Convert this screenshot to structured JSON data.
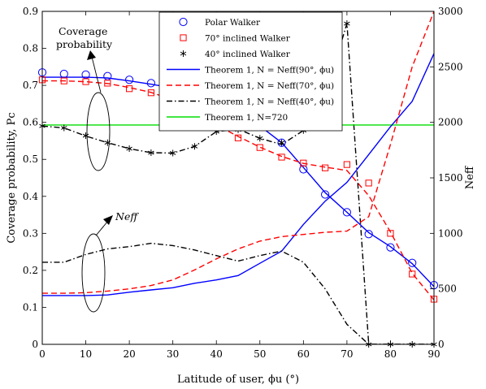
{
  "chart_data": {
    "type": "line",
    "x_label": "Latitude of user, ϕu (°)",
    "y_left_label": "Coverage probability, Pc",
    "y_right_label": "Neff",
    "x_ticks": [
      0,
      10,
      20,
      30,
      40,
      50,
      60,
      70,
      80,
      90
    ],
    "y_left_ticks": [
      0,
      0.1,
      0.2,
      0.3,
      0.4,
      0.5,
      0.6,
      0.7,
      0.8,
      0.9
    ],
    "y_right_ticks": [
      0,
      500,
      1000,
      1500,
      2000,
      2500,
      3000
    ],
    "x_range": [
      0,
      90
    ],
    "y_left_range": [
      0,
      0.9
    ],
    "y_right_range": [
      0,
      3000
    ],
    "grid": false,
    "legend_position": "top-center",
    "legend": [
      "Polar Walker",
      "70° inclined Walker",
      "40° inclined Walker",
      "Theorem 1, N = Neff(90°, ϕu)",
      "Theorem 1, N = Neff(70°, ϕu)",
      "Theorem 1, N = Neff(40°, ϕu)",
      "Theorem 1, N=720"
    ],
    "annotations": {
      "coverage_line1": "Coverage",
      "coverage_line2": "probability",
      "neff": "Neff"
    },
    "series": [
      {
        "name": "Polar Walker",
        "axis": "left",
        "kind": "marker",
        "marker": "circle",
        "color": "#0000ff",
        "x": [
          0,
          5,
          10,
          15,
          20,
          25,
          30,
          35,
          40,
          45,
          50,
          55,
          60,
          65,
          70,
          75,
          80,
          85,
          90
        ],
        "y": [
          0.735,
          0.731,
          0.729,
          0.725,
          0.715,
          0.706,
          0.695,
          0.679,
          0.654,
          0.632,
          0.589,
          0.545,
          0.473,
          0.405,
          0.357,
          0.298,
          0.262,
          0.22,
          0.16
        ]
      },
      {
        "name": "70° inclined Walker",
        "axis": "left",
        "kind": "marker",
        "marker": "square",
        "color": "#ff0000",
        "x": [
          0,
          5,
          10,
          15,
          20,
          25,
          30,
          35,
          40,
          45,
          50,
          55,
          60,
          65,
          70,
          75,
          80,
          85,
          90
        ],
        "y": [
          0.715,
          0.712,
          0.71,
          0.706,
          0.691,
          0.68,
          0.66,
          0.634,
          0.6,
          0.558,
          0.532,
          0.506,
          0.49,
          0.477,
          0.486,
          0.436,
          0.3,
          0.19,
          0.122
        ]
      },
      {
        "name": "40° inclined Walker",
        "axis": "left",
        "kind": "marker",
        "marker": "asterisk",
        "color": "#000000",
        "x": [
          0,
          5,
          10,
          15,
          20,
          25,
          30,
          35,
          40,
          45,
          50,
          55,
          60,
          65,
          70,
          75,
          80,
          85,
          90
        ],
        "y": [
          0.59,
          0.585,
          0.564,
          0.545,
          0.529,
          0.518,
          0.517,
          0.535,
          0.575,
          0.58,
          0.557,
          0.545,
          0.578,
          0.673,
          0.867,
          0,
          0,
          0,
          0
        ]
      },
      {
        "name": "Theorem 1, N = Neff(90°, ϕu)",
        "axis": "left",
        "kind": "line",
        "dash": "solid",
        "color": "#0000ff",
        "x": [
          0,
          5,
          10,
          15,
          20,
          25,
          30,
          35,
          40,
          45,
          50,
          55,
          60,
          65,
          70,
          75,
          80,
          85,
          90
        ],
        "y": [
          0.722,
          0.722,
          0.722,
          0.72,
          0.712,
          0.703,
          0.693,
          0.677,
          0.652,
          0.628,
          0.59,
          0.545,
          0.478,
          0.41,
          0.357,
          0.302,
          0.264,
          0.218,
          0.156
        ]
      },
      {
        "name": "Theorem 1, N = Neff(70°, ϕu)",
        "axis": "left",
        "kind": "line",
        "dash": "dash",
        "color": "#ff0000",
        "x": [
          0,
          5,
          10,
          15,
          20,
          25,
          30,
          35,
          40,
          45,
          50,
          55,
          60,
          65,
          70,
          75,
          80,
          85,
          90
        ],
        "y": [
          0.712,
          0.712,
          0.71,
          0.705,
          0.694,
          0.681,
          0.661,
          0.632,
          0.593,
          0.562,
          0.533,
          0.508,
          0.489,
          0.479,
          0.47,
          0.402,
          0.304,
          0.192,
          0.12
        ]
      },
      {
        "name": "Theorem 1, N = Neff(40°, ϕu)",
        "axis": "left",
        "kind": "line",
        "dash": "dashdot",
        "color": "#000000",
        "x": [
          0,
          5,
          10,
          15,
          20,
          25,
          30,
          35,
          40,
          45,
          50,
          55,
          60,
          65,
          70,
          75,
          80,
          85,
          90
        ],
        "y": [
          0.59,
          0.585,
          0.563,
          0.545,
          0.529,
          0.518,
          0.517,
          0.535,
          0.575,
          0.582,
          0.557,
          0.54,
          0.578,
          0.673,
          0.867,
          0,
          0,
          0,
          0
        ]
      },
      {
        "name": "Theorem 1, N=720",
        "axis": "left",
        "kind": "line",
        "dash": "solid",
        "color": "#00dd00",
        "x": [
          0,
          90
        ],
        "y": [
          0.593,
          0.593
        ]
      },
      {
        "name": "Neff, 90°",
        "axis": "right",
        "kind": "line",
        "dash": "solid",
        "color": "#0000ff",
        "x": [
          0,
          5,
          10,
          15,
          20,
          25,
          30,
          35,
          40,
          45,
          50,
          55,
          60,
          65,
          70,
          75,
          80,
          85,
          90
        ],
        "y": [
          440,
          440,
          440,
          445,
          470,
          490,
          510,
          550,
          580,
          620,
          730,
          840,
          1080,
          1290,
          1460,
          1710,
          1960,
          2190,
          2620
        ]
      },
      {
        "name": "Neff, 70°",
        "axis": "right",
        "kind": "line",
        "dash": "dash",
        "color": "#ff0000",
        "x": [
          0,
          5,
          10,
          15,
          20,
          25,
          30,
          35,
          40,
          45,
          50,
          55,
          60,
          65,
          70,
          75,
          80,
          85,
          90
        ],
        "y": [
          460,
          460,
          465,
          480,
          500,
          530,
          580,
          670,
          770,
          860,
          930,
          970,
          990,
          1010,
          1020,
          1150,
          1800,
          2500,
          3000
        ]
      },
      {
        "name": "Neff, 40°",
        "axis": "right",
        "kind": "line",
        "dash": "dashdot",
        "color": "#000000",
        "x": [
          0,
          5,
          10,
          15,
          20,
          25,
          30,
          35,
          40,
          45,
          50,
          55,
          60,
          65,
          70,
          75,
          80,
          85,
          90
        ],
        "y": [
          740,
          740,
          810,
          860,
          880,
          910,
          890,
          850,
          800,
          750,
          800,
          840,
          740,
          500,
          180,
          0,
          0,
          0,
          0
        ]
      }
    ]
  }
}
